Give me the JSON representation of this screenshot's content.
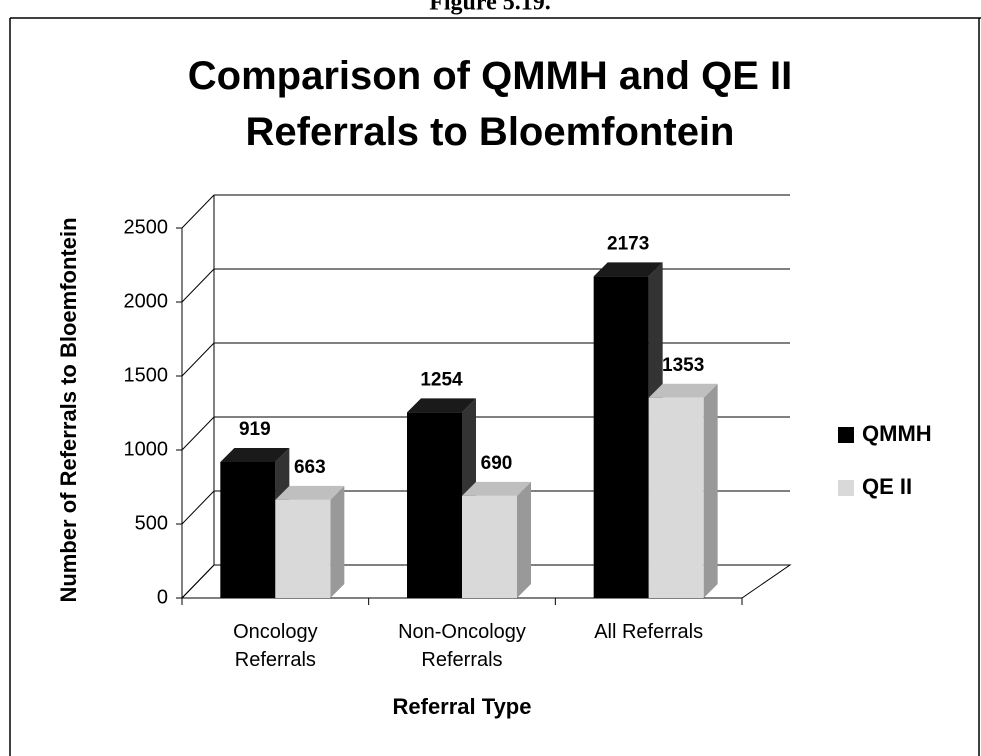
{
  "caption": "Figure 5.19.",
  "chart_data": {
    "type": "bar3d",
    "title": "Comparison of QMMH and QE II Referrals to Bloemfontein",
    "x_label": "Referral Type",
    "y_label": "Number of Referrals to Bloemfontein",
    "categories": [
      "Oncology Referrals",
      "Non-Oncology Referrals",
      "All Referrals"
    ],
    "series": [
      {
        "name": "QMMH",
        "color": "#000000",
        "values": [
          919,
          1254,
          2173
        ]
      },
      {
        "name": "QE II",
        "color": "#d9d9d9",
        "values": [
          663,
          690,
          1353
        ]
      }
    ],
    "ylim": [
      0,
      2500
    ],
    "yticks": [
      0,
      500,
      1000,
      1500,
      2000,
      2500
    ],
    "grid": true,
    "legend": "right"
  }
}
